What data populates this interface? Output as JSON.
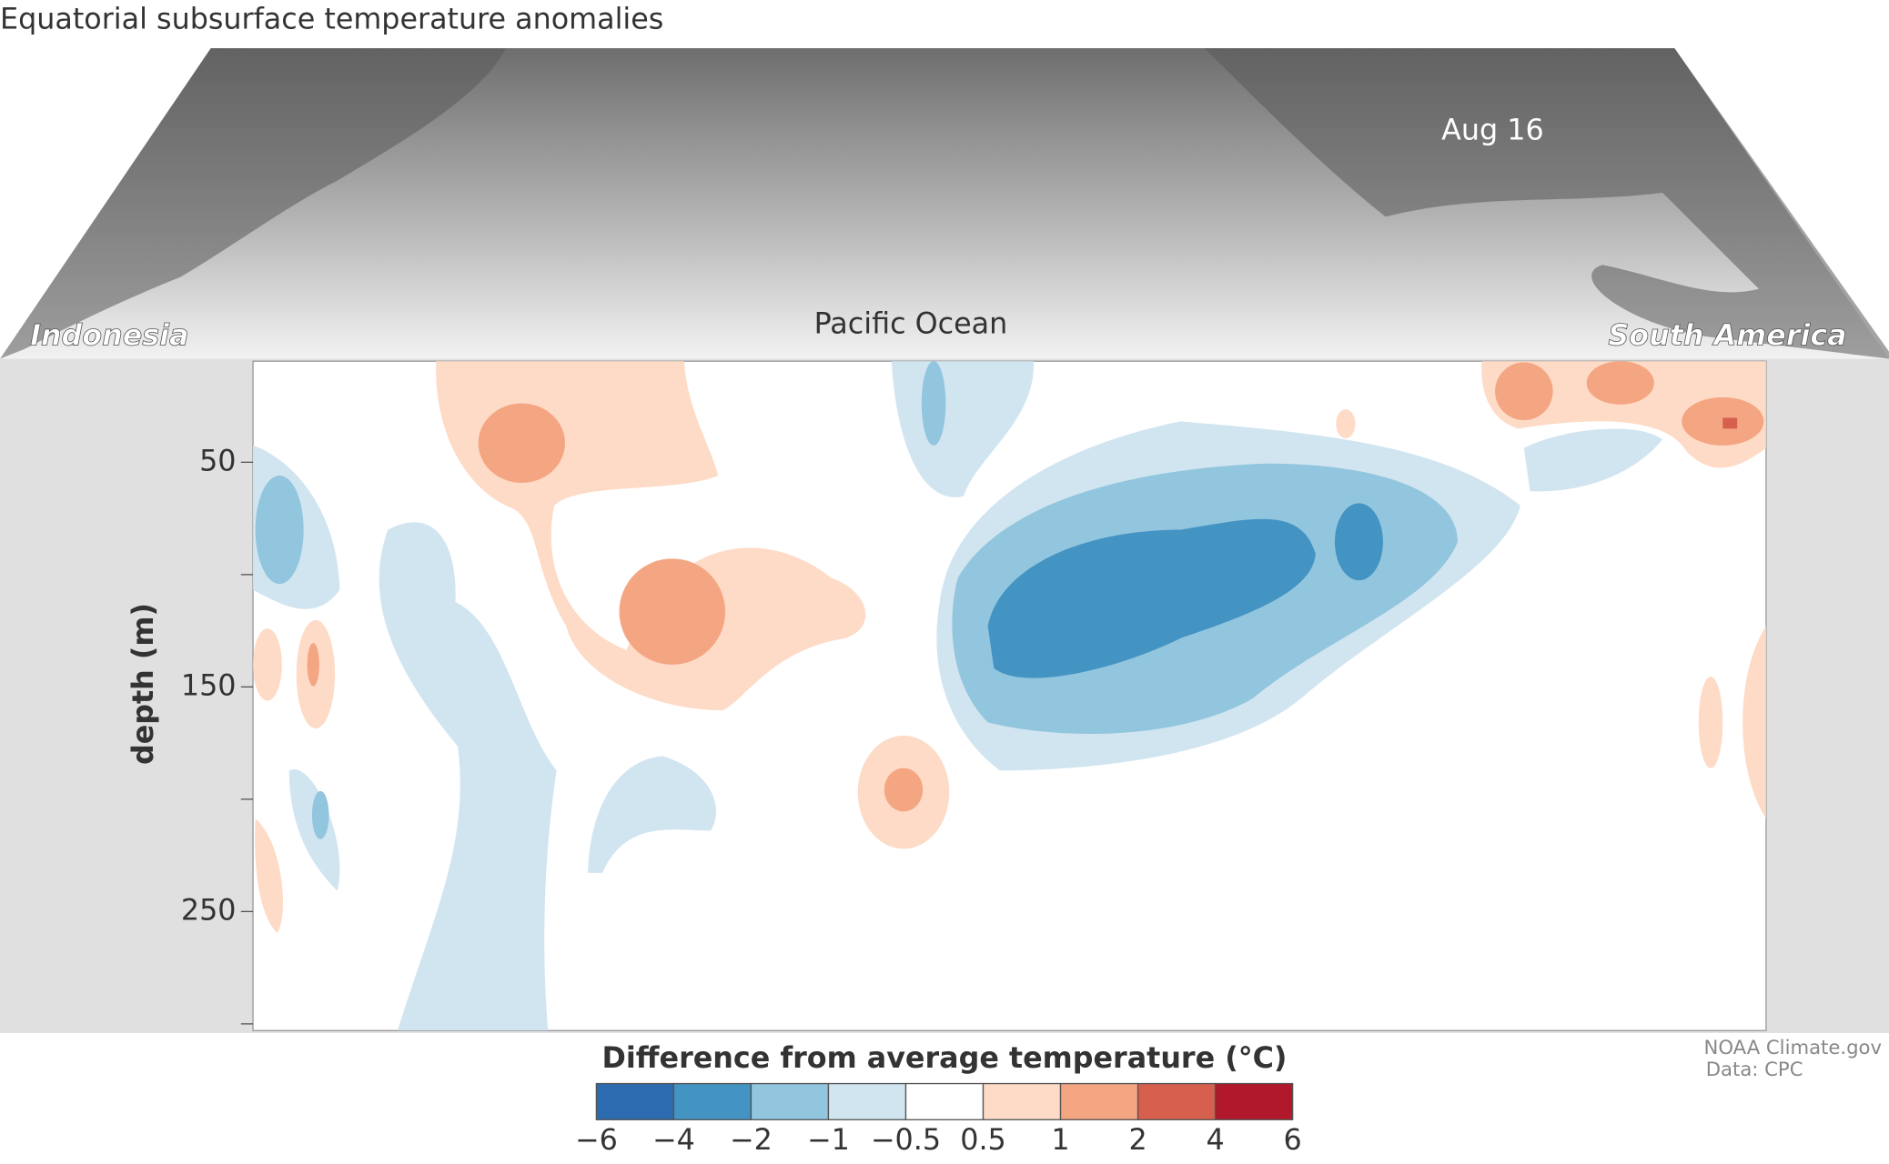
{
  "chart_data": {
    "type": "contour",
    "title": "Equatorial subsurface temperature anomalies",
    "date_label": "Aug 16",
    "map_labels": {
      "left": "Indonesia",
      "center": "Pacific Ocean",
      "right": "South America"
    },
    "y_label": "depth (m)",
    "ylim": [
      5,
      303
    ],
    "y_reversed": true,
    "yticks": [
      50,
      150,
      250
    ],
    "minor_yticks": [
      100,
      200,
      300
    ],
    "colorbar": {
      "title": "Difference from average temperature (°C)",
      "boundaries": [
        {
          "value": -6,
          "label": "−6"
        },
        {
          "value": -4,
          "label": "−4"
        },
        {
          "value": -2,
          "label": "−2"
        },
        {
          "value": -1,
          "label": "−1"
        },
        {
          "value": -0.5,
          "label": "−0.5"
        },
        0.5,
        1,
        2,
        4,
        6
      ],
      "colors": [
        "#2c6bb0",
        "#4393c3",
        "#92c5de",
        "#d1e5f0",
        "#ffffff",
        "#fddbc7",
        "#f4a582",
        "#d6604d",
        "#b2182b"
      ]
    },
    "credits": [
      "NOAA Climate.gov",
      "Data: CPC"
    ]
  }
}
